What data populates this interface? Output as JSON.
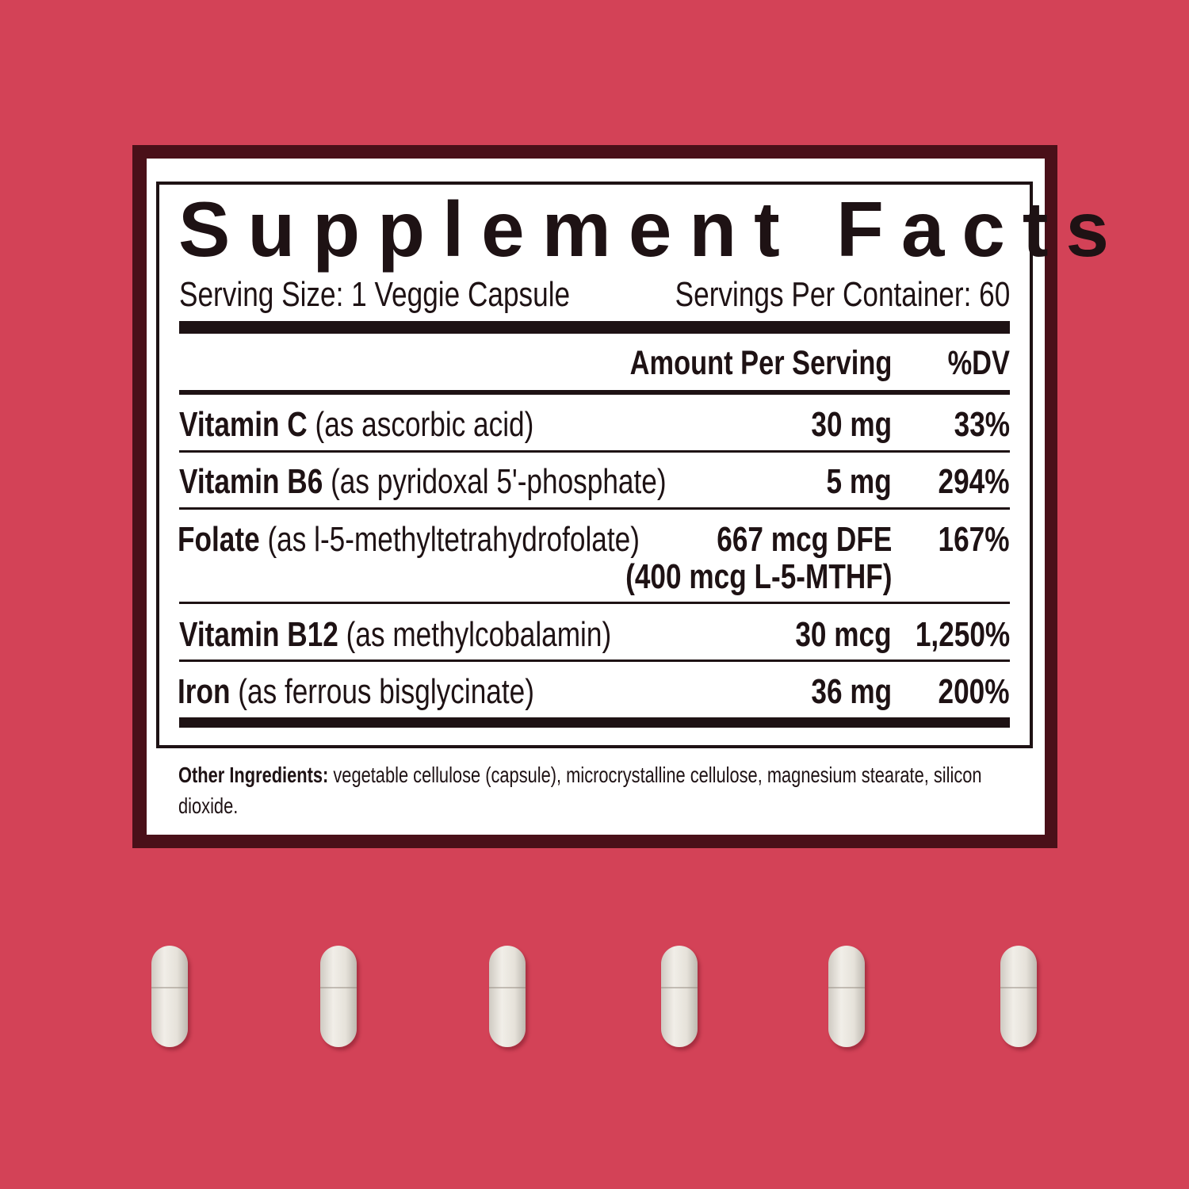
{
  "colors": {
    "background": "#d34257",
    "frame": "#4a1019",
    "label": "#ffffff",
    "ink": "#1e1214"
  },
  "label": {
    "title": "Supplement Facts",
    "serving_size": "Serving Size: 1 Veggie Capsule",
    "servings_per_container": "Servings Per Container: 60",
    "header_amount": "Amount Per Serving",
    "header_dv": "%DV",
    "rows": [
      {
        "name": "Vitamin C",
        "source": "(as ascorbic acid)",
        "amount": "30 mg",
        "dv": "33%"
      },
      {
        "name": "Vitamin B6",
        "source": "(as pyridoxal 5'-phosphate)",
        "amount": "5 mg",
        "dv": "294%"
      },
      {
        "name": "Folate",
        "source": "(as l-5-methyltetrahydrofolate)",
        "amount": "667 mcg DFE",
        "amount2": "(400 mcg L-5-MTHF)",
        "dv": "167%"
      },
      {
        "name": "Vitamin B12",
        "source": "(as methylcobalamin)",
        "amount": "30 mcg",
        "dv": "1,250%"
      },
      {
        "name": "Iron",
        "source": "(as ferrous bisglycinate)",
        "amount": "36 mg",
        "dv": "200%"
      }
    ],
    "other_label": "Other Ingredients:",
    "other_line1": "vegetable cellulose (capsule), microcrystalline cellulose, magnesium stearate, silicon",
    "other_line2": "dioxide."
  },
  "capsules": {
    "count": 6,
    "icon": "capsule-icon"
  }
}
